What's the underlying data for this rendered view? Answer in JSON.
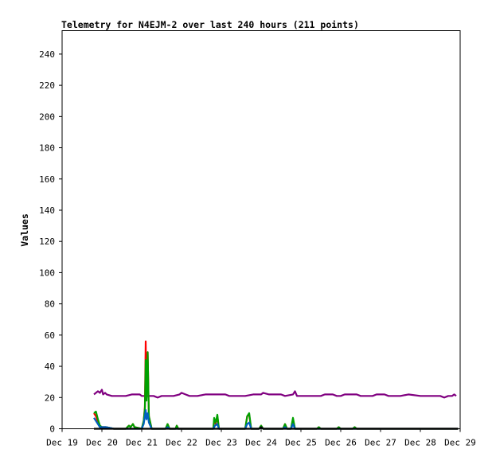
{
  "chart_data": {
    "type": "line",
    "title": "Telemetry for N4EJM-2 over last 240 hours (211 points)",
    "xlabel": "",
    "ylabel": "Values",
    "grid": false,
    "legend": "none",
    "x_ticks": [
      "Dec 19",
      "Dec 20",
      "Dec 21",
      "Dec 22",
      "Dec 23",
      "Dec 24",
      "Dec 25",
      "Dec 26",
      "Dec 27",
      "Dec 28",
      "Dec 29"
    ],
    "xlim": [
      0,
      10
    ],
    "x_units": "days since Dec 19",
    "ylim": [
      0,
      255
    ],
    "y_ticks": [
      0,
      20,
      40,
      60,
      80,
      100,
      120,
      140,
      160,
      180,
      200,
      220,
      240
    ],
    "series": [
      {
        "color": "#800080",
        "points": [
          [
            0.8,
            22
          ],
          [
            0.85,
            23
          ],
          [
            0.9,
            24
          ],
          [
            0.95,
            23
          ],
          [
            1.0,
            25
          ],
          [
            1.03,
            22
          ],
          [
            1.08,
            23
          ],
          [
            1.12,
            22
          ],
          [
            1.25,
            21
          ],
          [
            1.6,
            21
          ],
          [
            1.75,
            22
          ],
          [
            1.95,
            22
          ],
          [
            2.0,
            21
          ],
          [
            2.3,
            21
          ],
          [
            2.4,
            20
          ],
          [
            2.5,
            21
          ],
          [
            2.8,
            21
          ],
          [
            2.95,
            22
          ],
          [
            3.0,
            23
          ],
          [
            3.1,
            22
          ],
          [
            3.2,
            21
          ],
          [
            3.4,
            21
          ],
          [
            3.6,
            22
          ],
          [
            4.1,
            22
          ],
          [
            4.2,
            21
          ],
          [
            4.4,
            21
          ],
          [
            4.6,
            21
          ],
          [
            4.8,
            22
          ],
          [
            5.0,
            22
          ],
          [
            5.05,
            23
          ],
          [
            5.2,
            22
          ],
          [
            5.5,
            22
          ],
          [
            5.6,
            21
          ],
          [
            5.8,
            22
          ],
          [
            5.85,
            24
          ],
          [
            5.9,
            21
          ],
          [
            6.2,
            21
          ],
          [
            6.5,
            21
          ],
          [
            6.6,
            22
          ],
          [
            6.8,
            22
          ],
          [
            6.9,
            21
          ],
          [
            7.0,
            21
          ],
          [
            7.1,
            22
          ],
          [
            7.4,
            22
          ],
          [
            7.5,
            21
          ],
          [
            7.8,
            21
          ],
          [
            7.9,
            22
          ],
          [
            8.1,
            22
          ],
          [
            8.2,
            21
          ],
          [
            8.5,
            21
          ],
          [
            8.7,
            22
          ],
          [
            9.0,
            21
          ],
          [
            9.3,
            21
          ],
          [
            9.5,
            21
          ],
          [
            9.6,
            20
          ],
          [
            9.7,
            21
          ],
          [
            9.8,
            21
          ],
          [
            9.85,
            22
          ],
          [
            9.9,
            21
          ]
        ]
      },
      {
        "color": "#ff0000",
        "points": [
          [
            0.8,
            10
          ],
          [
            0.85,
            8
          ],
          [
            0.9,
            4
          ],
          [
            0.95,
            2
          ],
          [
            1.0,
            1
          ],
          [
            1.1,
            1
          ],
          [
            1.3,
            0
          ],
          [
            1.6,
            0
          ],
          [
            1.68,
            2
          ],
          [
            1.72,
            1
          ],
          [
            1.78,
            3
          ],
          [
            1.82,
            1
          ],
          [
            2.0,
            0
          ],
          [
            2.05,
            5
          ],
          [
            2.08,
            14
          ],
          [
            2.1,
            56
          ],
          [
            2.12,
            20
          ],
          [
            2.15,
            49
          ],
          [
            2.18,
            8
          ],
          [
            2.25,
            0
          ],
          [
            2.6,
            0
          ],
          [
            2.65,
            3
          ],
          [
            2.7,
            0
          ],
          [
            2.85,
            0
          ],
          [
            2.88,
            2
          ],
          [
            2.92,
            0
          ],
          [
            3.8,
            0
          ],
          [
            3.82,
            6
          ],
          [
            3.86,
            3
          ],
          [
            3.9,
            8
          ],
          [
            3.94,
            0
          ],
          [
            4.6,
            0
          ],
          [
            4.65,
            8
          ],
          [
            4.7,
            9
          ],
          [
            4.75,
            0
          ],
          [
            4.95,
            0
          ],
          [
            5.0,
            2
          ],
          [
            5.05,
            0
          ],
          [
            5.55,
            0
          ],
          [
            5.6,
            3
          ],
          [
            5.65,
            0
          ],
          [
            5.75,
            0
          ],
          [
            5.8,
            6
          ],
          [
            5.85,
            0
          ],
          [
            6.4,
            0
          ],
          [
            6.45,
            1
          ],
          [
            6.5,
            0
          ],
          [
            6.9,
            0
          ],
          [
            6.95,
            1
          ],
          [
            7.0,
            0
          ],
          [
            7.3,
            0
          ],
          [
            7.35,
            1
          ],
          [
            7.4,
            0
          ],
          [
            9.95,
            0
          ]
        ]
      },
      {
        "color": "#00a000",
        "points": [
          [
            0.8,
            10
          ],
          [
            0.85,
            11
          ],
          [
            0.9,
            6
          ],
          [
            0.95,
            2
          ],
          [
            1.0,
            1
          ],
          [
            1.1,
            1
          ],
          [
            1.3,
            0
          ],
          [
            1.6,
            0
          ],
          [
            1.68,
            2
          ],
          [
            1.72,
            1
          ],
          [
            1.78,
            3
          ],
          [
            1.82,
            1
          ],
          [
            2.0,
            0
          ],
          [
            2.05,
            5
          ],
          [
            2.08,
            13
          ],
          [
            2.1,
            44
          ],
          [
            2.12,
            18
          ],
          [
            2.15,
            49
          ],
          [
            2.18,
            8
          ],
          [
            2.25,
            0
          ],
          [
            2.6,
            0
          ],
          [
            2.65,
            3
          ],
          [
            2.7,
            0
          ],
          [
            2.85,
            0
          ],
          [
            2.88,
            2
          ],
          [
            2.92,
            0
          ],
          [
            3.8,
            0
          ],
          [
            3.82,
            7
          ],
          [
            3.86,
            4
          ],
          [
            3.9,
            9
          ],
          [
            3.94,
            0
          ],
          [
            4.6,
            0
          ],
          [
            4.65,
            8
          ],
          [
            4.7,
            10
          ],
          [
            4.75,
            0
          ],
          [
            4.95,
            0
          ],
          [
            5.0,
            2
          ],
          [
            5.05,
            0
          ],
          [
            5.55,
            0
          ],
          [
            5.6,
            3
          ],
          [
            5.65,
            0
          ],
          [
            5.75,
            0
          ],
          [
            5.8,
            7
          ],
          [
            5.85,
            0
          ],
          [
            6.4,
            0
          ],
          [
            6.45,
            1
          ],
          [
            6.5,
            0
          ],
          [
            6.9,
            0
          ],
          [
            6.95,
            1
          ],
          [
            7.0,
            0
          ],
          [
            7.3,
            0
          ],
          [
            7.35,
            1
          ],
          [
            7.4,
            0
          ],
          [
            9.95,
            0
          ]
        ]
      },
      {
        "color": "#0060c0",
        "points": [
          [
            0.8,
            7
          ],
          [
            0.85,
            5
          ],
          [
            0.9,
            3
          ],
          [
            0.95,
            1
          ],
          [
            1.0,
            1
          ],
          [
            1.1,
            1
          ],
          [
            1.3,
            0
          ],
          [
            2.0,
            0
          ],
          [
            2.05,
            3
          ],
          [
            2.08,
            8
          ],
          [
            2.1,
            12
          ],
          [
            2.12,
            6
          ],
          [
            2.15,
            10
          ],
          [
            2.18,
            4
          ],
          [
            2.25,
            0
          ],
          [
            2.6,
            0
          ],
          [
            2.65,
            1
          ],
          [
            2.7,
            0
          ],
          [
            3.8,
            0
          ],
          [
            3.84,
            2
          ],
          [
            3.9,
            3
          ],
          [
            3.94,
            0
          ],
          [
            4.6,
            0
          ],
          [
            4.65,
            3
          ],
          [
            4.7,
            4
          ],
          [
            4.75,
            0
          ],
          [
            4.95,
            0
          ],
          [
            5.0,
            1
          ],
          [
            5.05,
            0
          ],
          [
            5.55,
            0
          ],
          [
            5.6,
            1
          ],
          [
            5.65,
            0
          ],
          [
            5.75,
            0
          ],
          [
            5.8,
            3
          ],
          [
            5.85,
            0
          ],
          [
            9.95,
            0
          ]
        ]
      },
      {
        "color": "#000000",
        "points": [
          [
            0.8,
            0
          ],
          [
            1.3,
            0
          ],
          [
            2.0,
            0
          ],
          [
            4.95,
            0
          ],
          [
            5.0,
            1
          ],
          [
            5.05,
            0
          ],
          [
            9.95,
            0
          ]
        ]
      }
    ]
  }
}
